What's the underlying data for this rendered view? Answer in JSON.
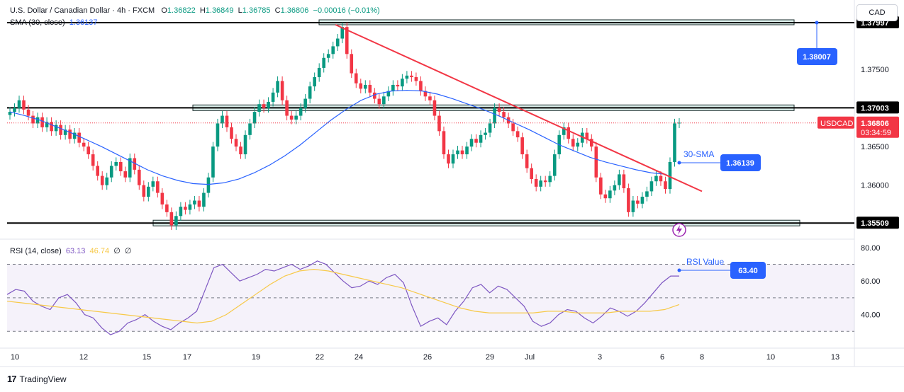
{
  "header": {
    "symbol_title": "U.S. Dollar / Canadian Dollar · 4h · FXCM",
    "open_label": "O",
    "open": "1.36822",
    "high_label": "H",
    "high": "1.36849",
    "low_label": "L",
    "low": "1.36785",
    "close_label": "C",
    "close": "1.36806",
    "change": "−0.00016 (−0.01%)"
  },
  "sma_legend": {
    "label": "SMA (30, close)",
    "value": "1.36137"
  },
  "rsi_legend": {
    "label": "RSI (14, close)",
    "rsi": "63.13",
    "ma": "46.74",
    "extra1": "∅",
    "extra2": "∅"
  },
  "currency_button": "CAD",
  "brand": {
    "name": "TradingView"
  },
  "colors": {
    "up": "#089981",
    "down": "#f23645",
    "sma": "#2962ff",
    "trend": "#f23645",
    "rsi": "#7e57c2",
    "rsi_ma": "#f7c948",
    "zone_fill": "#cfe9e4",
    "zone_border": "#1a2b2b"
  },
  "chart_data": [
    {
      "type": "candlestick",
      "name": "USDCAD",
      "ylim": [
        1.353,
        1.384
      ],
      "price_ticks": [
        "1.37500",
        "1.36500",
        "1.36000"
      ],
      "x_ticks": [
        "10",
        "12",
        "15",
        "17",
        "19",
        "22",
        "24",
        "26",
        "29",
        "Jul",
        "3",
        "6",
        "8",
        "10",
        "13"
      ],
      "series": [
        {
          "name": "candles",
          "close_points": [
            1.3695,
            1.37,
            1.371,
            1.3698,
            1.369,
            1.368,
            1.3688,
            1.3675,
            1.3682,
            1.367,
            1.3678,
            1.3665,
            1.3672,
            1.366,
            1.3668,
            1.3655,
            1.365,
            1.364,
            1.3625,
            1.3612,
            1.36,
            1.361,
            1.3625,
            1.363,
            1.3618,
            1.361,
            1.3635,
            1.362,
            1.36,
            1.3585,
            1.3598,
            1.3605,
            1.359,
            1.3575,
            1.3565,
            1.3548,
            1.356,
            1.3572,
            1.3568,
            1.3575,
            1.358,
            1.3572,
            1.359,
            1.361,
            1.365,
            1.368,
            1.369,
            1.3675,
            1.366,
            1.365,
            1.364,
            1.3665,
            1.368,
            1.3695,
            1.3705,
            1.37,
            1.3708,
            1.372,
            1.3735,
            1.371,
            1.369,
            1.3685,
            1.369,
            1.37,
            1.3712,
            1.3728,
            1.374,
            1.3752,
            1.3765,
            1.377,
            1.378,
            1.379,
            1.3805,
            1.377,
            1.3745,
            1.3732,
            1.3725,
            1.373,
            1.372,
            1.3712,
            1.3705,
            1.3715,
            1.3722,
            1.373,
            1.3728,
            1.3738,
            1.3742,
            1.374,
            1.3735,
            1.3722,
            1.3715,
            1.371,
            1.369,
            1.367,
            1.364,
            1.3628,
            1.364,
            1.3645,
            1.364,
            1.365,
            1.366,
            1.3655,
            1.3665,
            1.3668,
            1.368,
            1.37,
            1.3695,
            1.3688,
            1.368,
            1.367,
            1.3662,
            1.364,
            1.3622,
            1.3608,
            1.3598,
            1.3606,
            1.3604,
            1.3612,
            1.364,
            1.3665,
            1.3675,
            1.366,
            1.365,
            1.3655,
            1.3668,
            1.366,
            1.365,
            1.361,
            1.3588,
            1.3583,
            1.3593,
            1.36,
            1.3614,
            1.3596,
            1.3565,
            1.358,
            1.3576,
            1.3585,
            1.3592,
            1.3605,
            1.3612,
            1.3605,
            1.3595,
            1.363,
            1.368,
            1.3681
          ]
        },
        {
          "name": "SMA 30",
          "points": [
            1.3695,
            1.369,
            1.3684,
            1.3676,
            1.3668,
            1.3659,
            1.365,
            1.364,
            1.363,
            1.362,
            1.3612,
            1.3606,
            1.3602,
            1.3601,
            1.3603,
            1.3608,
            1.3616,
            1.3626,
            1.3638,
            1.3652,
            1.3668,
            1.3684,
            1.3698,
            1.371,
            1.3718,
            1.3722,
            1.3723,
            1.3722,
            1.3718,
            1.3712,
            1.3705,
            1.3698,
            1.369,
            1.3681,
            1.3672,
            1.3662,
            1.3652,
            1.3644,
            1.3636,
            1.363,
            1.3625,
            1.362,
            1.3616,
            1.3614
          ]
        },
        {
          "name": "Trendline",
          "points": [
            1.3808,
            1.3592
          ]
        }
      ],
      "levels": [
        "1.37003",
        "1.35509"
      ],
      "zones": [
        "1.37003",
        "1.35509",
        "1.38007"
      ],
      "labels": {
        "level_top_partial": "1.37997",
        "level_mid": "1.37003",
        "level_bottom": "1.35509",
        "callout_top": "1.38007",
        "callout_sma_text": "30-SMA",
        "callout_sma": "1.36139",
        "current_symbol": "USDCAD",
        "current_price": "1.36806",
        "countdown": "03:34:59"
      }
    },
    {
      "type": "line",
      "name": "RSI",
      "ylim": [
        20,
        85
      ],
      "rsi_ticks": [
        "80.00",
        "60.00",
        "40.00"
      ],
      "series": [
        {
          "name": "RSI",
          "points": [
            52,
            55,
            54,
            48,
            45,
            43,
            50,
            52,
            47,
            40,
            38,
            32,
            28,
            30,
            35,
            37,
            40,
            36,
            33,
            31,
            35,
            38,
            42,
            55,
            68,
            70,
            65,
            60,
            62,
            64,
            67,
            66,
            68,
            70,
            67,
            69,
            72,
            70,
            65,
            60,
            56,
            57,
            60,
            58,
            62,
            64,
            59,
            45,
            33,
            36,
            38,
            34,
            42,
            48,
            56,
            58,
            53,
            57,
            55,
            50,
            45,
            36,
            33,
            35,
            40,
            43,
            42,
            38,
            35,
            39,
            44,
            42,
            39,
            42,
            47,
            53,
            59,
            63,
            63
          ]
        },
        {
          "name": "RSI MA",
          "points": [
            48,
            47,
            46,
            45,
            44,
            43,
            42,
            41,
            40,
            39,
            38,
            37,
            36,
            35,
            36,
            40,
            46,
            52,
            58,
            63,
            66,
            67,
            66,
            64,
            62,
            60,
            58,
            56,
            53,
            50,
            47,
            44,
            42,
            41,
            41,
            41,
            41,
            42,
            42,
            41,
            41,
            41,
            42,
            42,
            42,
            43,
            46
          ]
        }
      ],
      "levels": [
        "70",
        "50",
        "30"
      ],
      "labels": {
        "callout_text": "RSI Value",
        "callout_value": "63.40"
      }
    }
  ]
}
